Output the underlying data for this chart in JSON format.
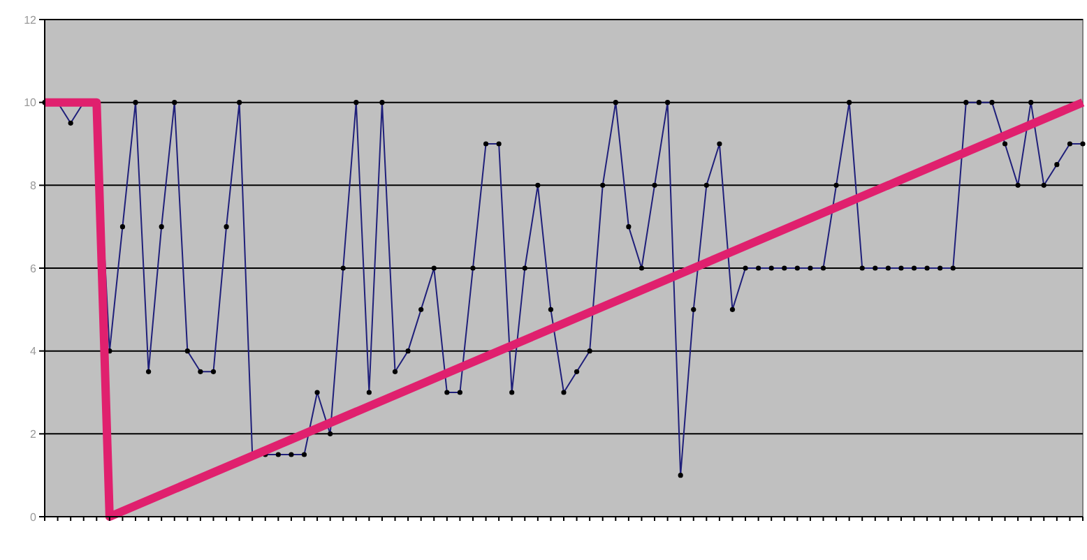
{
  "chart_data": {
    "type": "line",
    "categories": [
      null,
      null,
      null,
      null,
      null,
      null,
      null,
      null,
      null,
      null,
      null,
      null,
      null,
      null,
      null,
      null,
      null,
      null,
      null,
      null,
      null,
      null,
      null,
      null,
      null,
      null,
      null,
      null,
      null,
      null,
      null,
      null,
      null,
      null,
      null,
      null,
      null,
      null,
      null,
      null,
      null,
      null,
      null,
      null,
      null,
      null,
      null,
      null,
      null,
      null,
      null,
      null,
      null,
      null,
      null,
      null,
      null,
      null,
      null,
      null,
      null,
      null,
      null,
      null,
      null,
      null,
      null,
      null,
      null,
      null,
      null,
      null,
      null,
      null,
      null,
      null,
      null,
      null,
      null,
      null,
      null
    ],
    "ylim": [
      0,
      12
    ],
    "yticks": [
      0,
      2,
      4,
      6,
      8,
      10,
      12
    ],
    "grid": "y",
    "marker": "circle",
    "series": [
      {
        "color": "#1f1f7a",
        "values": [
          10,
          10,
          9.5,
          10,
          10,
          4,
          7,
          10,
          3.5,
          7,
          10,
          4,
          3.5,
          3.5,
          7,
          10,
          1.5,
          1.5,
          1.5,
          1.5,
          1.5,
          3,
          2,
          6,
          10,
          3,
          10,
          3.5,
          4,
          5,
          6,
          3,
          3,
          6,
          9,
          9,
          3,
          6,
          8,
          5,
          3,
          3.5,
          4,
          8,
          10,
          7,
          6,
          8,
          10,
          1,
          5,
          8,
          9,
          5,
          6,
          6,
          6,
          6,
          6,
          6,
          6,
          8,
          10,
          6,
          6,
          6,
          6,
          6,
          6,
          6,
          6,
          10,
          10,
          10,
          9,
          8,
          10,
          8,
          8.5,
          9,
          9
        ]
      },
      {
        "type": "line",
        "color": "#e0206e",
        "marker": "none",
        "values": [
          10,
          null,
          null,
          null,
          10,
          0,
          null,
          null,
          null,
          null,
          null,
          null,
          null,
          null,
          null,
          null,
          null,
          null,
          null,
          null,
          null,
          null,
          null,
          null,
          null,
          null,
          null,
          null,
          null,
          null,
          null,
          null,
          null,
          null,
          null,
          null,
          null,
          null,
          null,
          null,
          null,
          null,
          null,
          null,
          null,
          null,
          null,
          null,
          null,
          null,
          null,
          null,
          null,
          null,
          null,
          null,
          null,
          null,
          null,
          null,
          null,
          null,
          null,
          null,
          null,
          null,
          null,
          null,
          null,
          null,
          null,
          null,
          null,
          null,
          null,
          null,
          null,
          null,
          null,
          null,
          10
        ]
      }
    ]
  }
}
